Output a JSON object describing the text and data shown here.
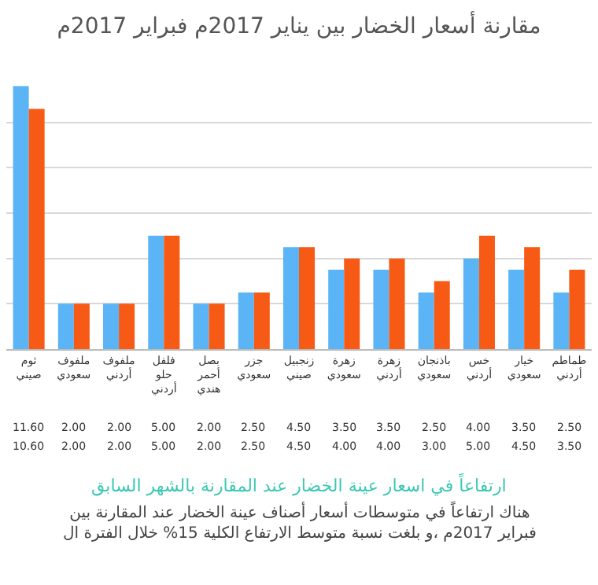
{
  "chart_data": {
    "type": "bar",
    "title": "مقارنة أسعار الخضار بين يناير 2017م فبراير 2017م",
    "categories": [
      "ثوم صيني",
      "ملفوف سعودي",
      "ملفوف أردني",
      "فلفل حلو أردني",
      "بصل أحمر هندي",
      "جزر سعودي",
      "زنجبيل صيني",
      "زهرة سعودي",
      "زهرة أردني",
      "باذنجان سعودي",
      "خس أردني",
      "خيار سعودي",
      "طماطم أردني"
    ],
    "series": [
      {
        "color": "#5ab4f5",
        "values": [
          11.6,
          2.0,
          2.0,
          5.0,
          2.0,
          2.5,
          4.5,
          3.5,
          3.5,
          2.5,
          4.0,
          3.5,
          2.5
        ],
        "value_labels": [
          "11.60",
          "2.00",
          "2.00",
          "5.00",
          "2.00",
          "2.50",
          "4.50",
          "3.50",
          "3.50",
          "2.50",
          "4.00",
          "3.50",
          "2.50"
        ]
      },
      {
        "color": "#f65a14",
        "values": [
          10.6,
          2.0,
          2.0,
          5.0,
          2.0,
          2.5,
          4.5,
          4.0,
          4.0,
          3.0,
          5.0,
          4.5,
          3.5
        ],
        "value_labels": [
          "10.60",
          "2.00",
          "2.00",
          "5.00",
          "2.00",
          "2.50",
          "4.50",
          "4.00",
          "4.00",
          "3.00",
          "5.00",
          "4.50",
          "3.50"
        ]
      }
    ],
    "yticks": [
      {
        "value": 2,
        "label": null
      },
      {
        "value": 4,
        "label": null
      },
      {
        "value": 6,
        "label": null
      },
      {
        "value": 8,
        "label": null
      },
      {
        "value": 10,
        "label": null
      }
    ],
    "grid": "y",
    "annotations": [
      "ارتفاعاً في اسعار عينة الخضار عند المقارنة بالشهر السابق",
      "هناك ارتفاعاً في متوسطات أسعار أصناف عينة الخضار عند المقارنة بين\nفبراير 2017م ،و بلغت نسبة متوسط الارتفاع الكلية 15% خلال الفترة ال"
    ]
  }
}
